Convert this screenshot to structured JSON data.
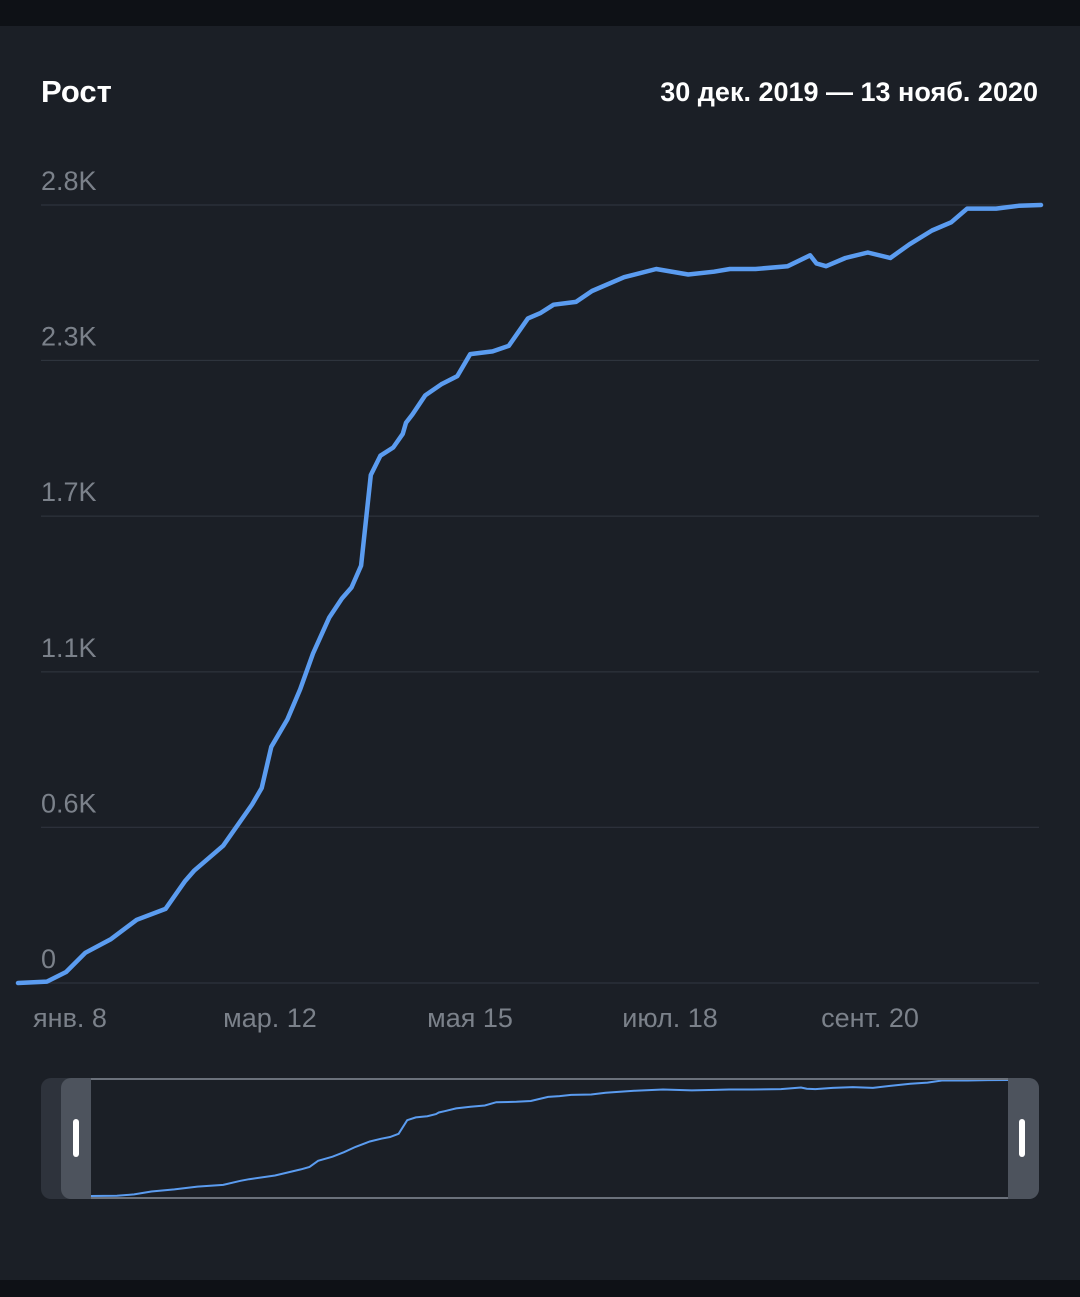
{
  "header": {
    "title": "Рост",
    "date_range": "30 дек. 2019 — 13 нояб. 2020"
  },
  "colors": {
    "background": "#1b1f26",
    "line": "#5b9cf0",
    "grid": "#323741",
    "tick_text": "#7b818a"
  },
  "chart_data": {
    "type": "line",
    "title": "Рост",
    "xlabel": "",
    "ylabel": "",
    "x_tick_labels": [
      "янв. 8",
      "мар. 12",
      "мая 15",
      "июл. 18",
      "сент. 20"
    ],
    "y_tick_labels": [
      "0",
      "0.6K",
      "1.1K",
      "1.7K",
      "2.3K",
      "2.8K"
    ],
    "y_tick_values": [
      0,
      567,
      1133,
      1700,
      2267,
      2833
    ],
    "ylim": [
      0,
      2833
    ],
    "xlim": [
      "2019-12-30",
      "2020-11-13"
    ],
    "grid": true,
    "series": [
      {
        "x": [
          "2019-12-30",
          "2020-01-08",
          "2020-01-14",
          "2020-01-20",
          "2020-01-28",
          "2020-02-05",
          "2020-02-14",
          "2020-02-20",
          "2020-02-23",
          "2020-03-03",
          "2020-03-12",
          "2020-03-15",
          "2020-03-18",
          "2020-03-23",
          "2020-03-27",
          "2020-03-31",
          "2020-04-05",
          "2020-04-09",
          "2020-04-12",
          "2020-04-15",
          "2020-04-18",
          "2020-04-21",
          "2020-04-25",
          "2020-04-28",
          "2020-04-29",
          "2020-05-01",
          "2020-05-05",
          "2020-05-10",
          "2020-05-15",
          "2020-05-19",
          "2020-05-26",
          "2020-05-31",
          "2020-06-06",
          "2020-06-10",
          "2020-06-14",
          "2020-06-21",
          "2020-06-26",
          "2020-07-06",
          "2020-07-16",
          "2020-07-26",
          "2020-08-03",
          "2020-08-08",
          "2020-08-16",
          "2020-08-26",
          "2020-09-02",
          "2020-09-04",
          "2020-09-07",
          "2020-09-13",
          "2020-09-20",
          "2020-09-27",
          "2020-10-03",
          "2020-10-10",
          "2020-10-16",
          "2020-10-21",
          "2020-10-30",
          "2020-11-06",
          "2020-11-13"
        ],
        "values": [
          0,
          5,
          40,
          110,
          160,
          230,
          270,
          370,
          410,
          500,
          650,
          710,
          860,
          960,
          1070,
          1200,
          1330,
          1400,
          1440,
          1520,
          1850,
          1920,
          1950,
          2000,
          2040,
          2070,
          2140,
          2180,
          2210,
          2290,
          2300,
          2320,
          2420,
          2440,
          2470,
          2480,
          2520,
          2570,
          2600,
          2580,
          2590,
          2600,
          2600,
          2610,
          2650,
          2620,
          2610,
          2640,
          2660,
          2640,
          2690,
          2740,
          2770,
          2820,
          2820,
          2830,
          2833
        ]
      }
    ]
  },
  "navigator": {
    "handle_left": "drag-handle",
    "handle_right": "drag-handle"
  }
}
